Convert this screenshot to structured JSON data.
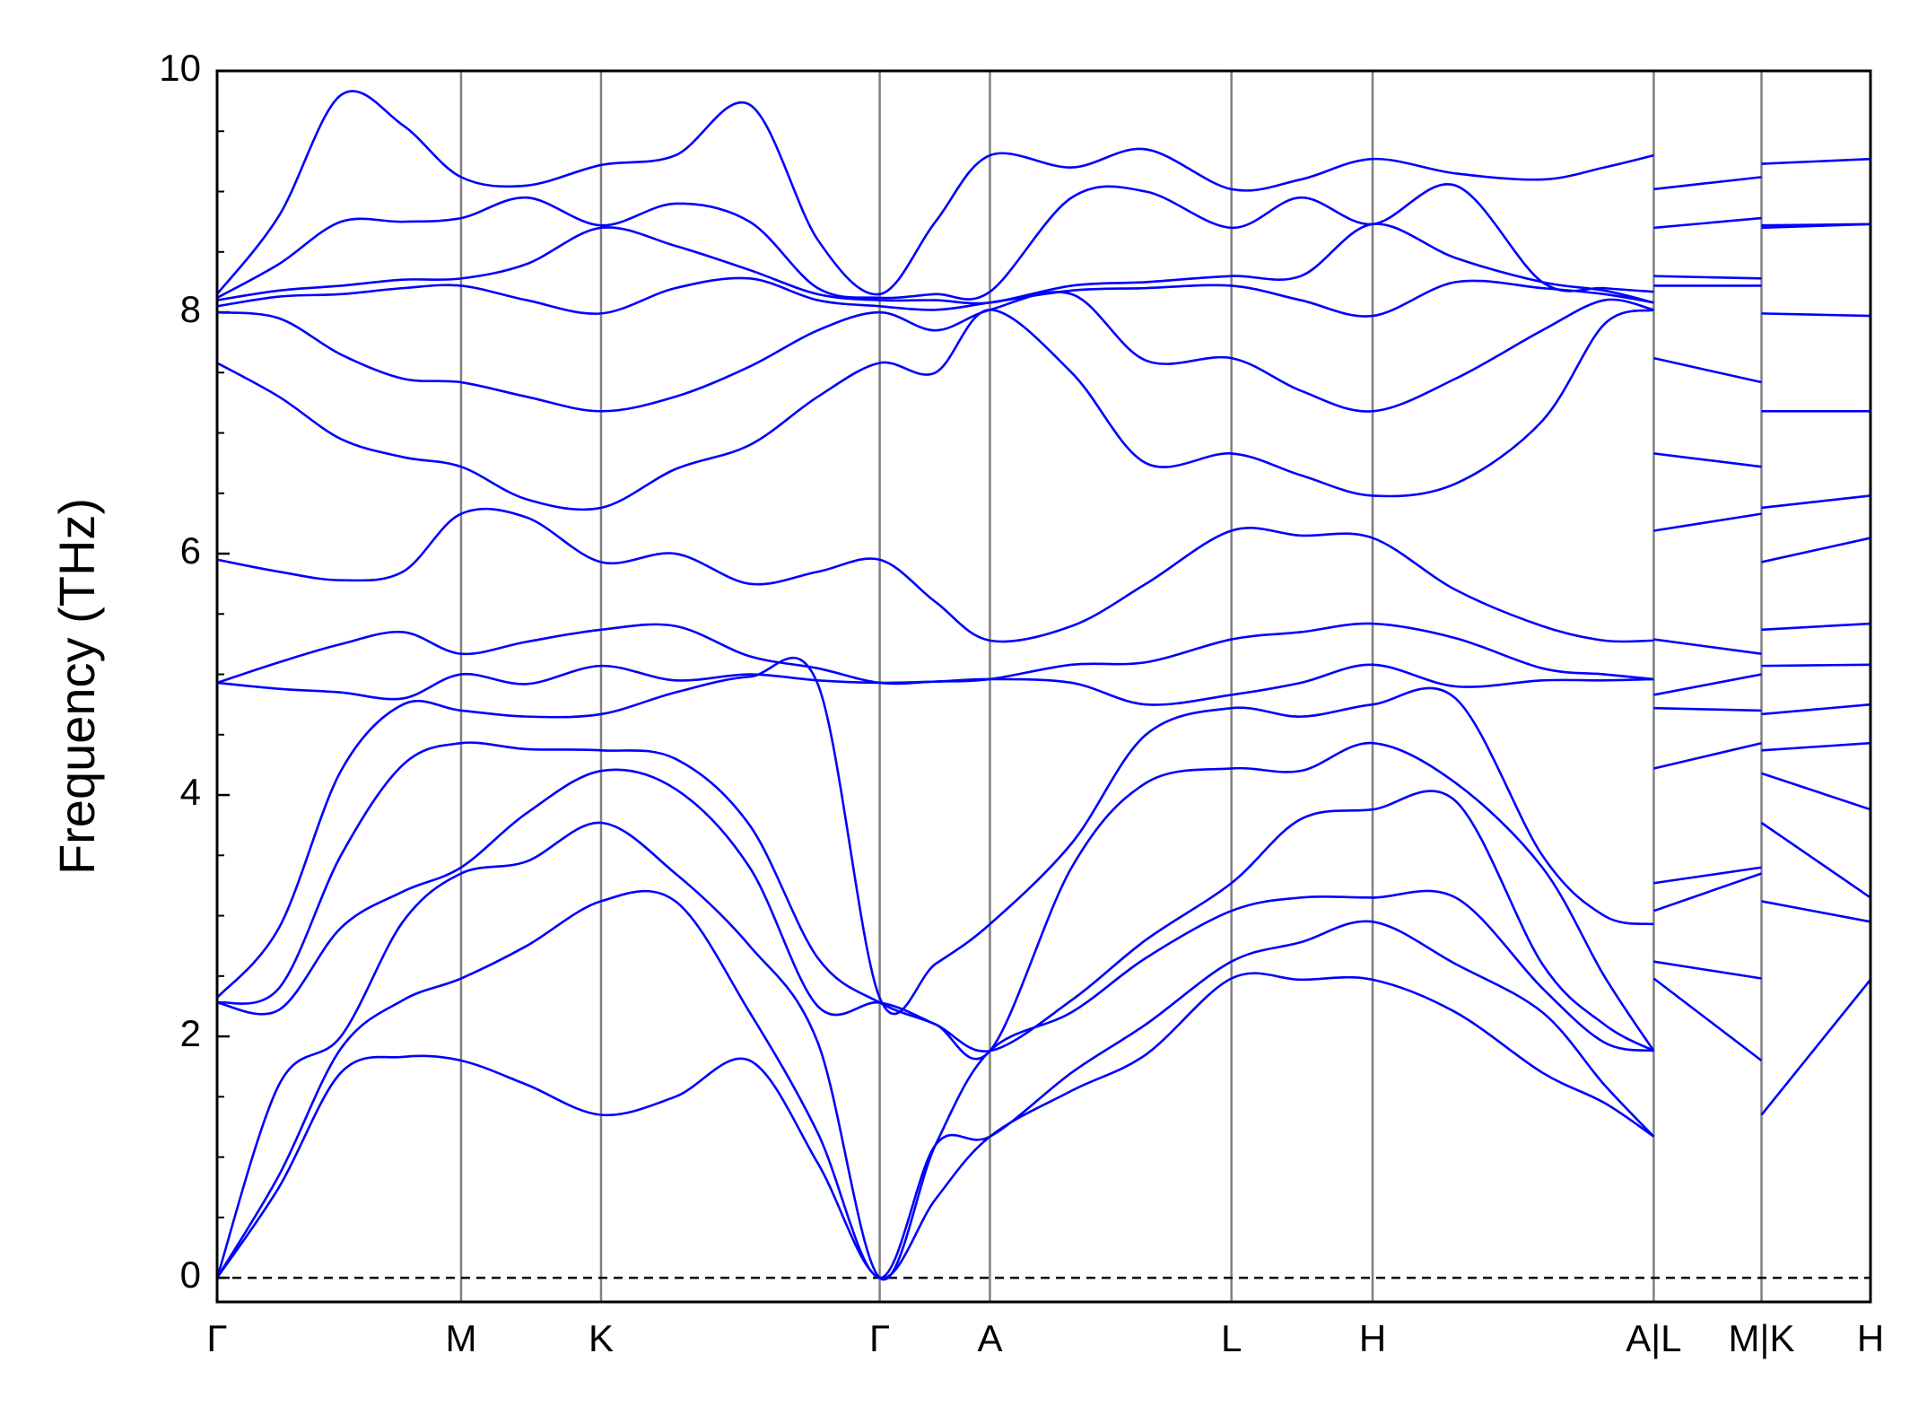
{
  "chart_data": {
    "type": "line",
    "ylabel": "Frequency (THz)",
    "color": "#0000ff",
    "vline_color": "#808080",
    "zero_line": true,
    "xlim": [
      0,
      13.35
    ],
    "ylim": [
      -0.2,
      10
    ],
    "yticks": [
      0,
      2,
      4,
      6,
      8,
      10
    ],
    "yminorticks": [
      0.5,
      1,
      1.5,
      2.5,
      3,
      3.5,
      4.5,
      5,
      5.5,
      6.5,
      7,
      7.5,
      8.5,
      9,
      9.5
    ],
    "xticks": [
      {
        "value": 0,
        "label": "Γ"
      },
      {
        "value": 1.97,
        "label": "M"
      },
      {
        "value": 3.1,
        "label": "K"
      },
      {
        "value": 5.35,
        "label": "Γ"
      },
      {
        "value": 6.24,
        "label": "A"
      },
      {
        "value": 8.19,
        "label": "L"
      },
      {
        "value": 9.33,
        "label": "H"
      },
      {
        "value": 11.6,
        "label": "A|L"
      },
      {
        "value": 12.47,
        "label": "M|K"
      },
      {
        "value": 13.35,
        "label": "H"
      }
    ],
    "x": [
      0,
      0.5,
      1.0,
      1.5,
      1.97,
      2.5,
      3.1,
      3.7,
      4.3,
      4.85,
      5.35,
      5.8,
      6.24,
      6.9,
      7.5,
      8.19,
      8.75,
      9.33,
      10.0,
      10.7,
      11.2,
      11.6,
      11.6,
      11.6,
      12.47,
      12.47,
      12.47,
      13.35
    ],
    "series": [
      {
        "values": [
          0,
          0.75,
          1.7,
          1.83,
          1.8,
          1.6,
          1.35,
          1.5,
          1.8,
          0.95,
          0,
          0.65,
          1.17,
          1.55,
          1.85,
          2.48,
          2.47,
          2.47,
          2.2,
          1.7,
          1.45,
          1.17,
          null,
          2.48,
          1.8,
          null,
          1.35,
          2.47
        ]
      },
      {
        "values": [
          0,
          0.85,
          1.9,
          2.3,
          2.48,
          2.75,
          3.12,
          3.12,
          2.2,
          1.2,
          0,
          1.1,
          1.17,
          1.7,
          2.1,
          2.62,
          2.78,
          2.95,
          2.6,
          2.2,
          1.6,
          1.17,
          null,
          2.62,
          2.48,
          null,
          3.12,
          2.95
        ]
      },
      {
        "values": [
          0,
          1.6,
          2.0,
          2.95,
          3.35,
          3.45,
          3.77,
          3.35,
          2.75,
          1.95,
          0,
          1.1,
          1.88,
          2.2,
          2.65,
          3.04,
          3.15,
          3.15,
          3.15,
          2.4,
          1.95,
          1.88,
          null,
          3.04,
          3.35,
          null,
          3.77,
          3.15
        ]
      },
      {
        "values": [
          2.28,
          2.22,
          2.9,
          3.2,
          3.4,
          3.85,
          4.2,
          4.05,
          3.4,
          2.25,
          2.28,
          2.1,
          1.88,
          2.3,
          2.8,
          3.27,
          3.8,
          3.88,
          3.95,
          2.6,
          2.1,
          1.88,
          null,
          3.27,
          3.4,
          null,
          4.18,
          3.88
        ]
      },
      {
        "values": [
          2.28,
          2.4,
          3.5,
          4.25,
          4.43,
          4.38,
          4.37,
          4.3,
          3.75,
          2.65,
          2.28,
          2.1,
          1.88,
          3.4,
          4.1,
          4.22,
          4.2,
          4.43,
          4.1,
          3.4,
          2.5,
          1.88,
          null,
          4.22,
          4.43,
          null,
          4.37,
          4.43
        ]
      },
      {
        "values": [
          2.32,
          2.9,
          4.2,
          4.75,
          4.7,
          4.65,
          4.67,
          4.85,
          4.98,
          4.92,
          2.32,
          2.6,
          2.93,
          3.6,
          4.5,
          4.72,
          4.65,
          4.75,
          4.8,
          3.5,
          3.0,
          2.93,
          null,
          4.72,
          4.7,
          null,
          4.67,
          4.75
        ]
      },
      {
        "values": [
          4.93,
          4.88,
          4.85,
          4.8,
          5.0,
          4.92,
          5.07,
          4.95,
          5.0,
          4.95,
          4.93,
          4.94,
          4.96,
          4.93,
          4.75,
          4.83,
          4.93,
          5.08,
          4.9,
          4.95,
          4.95,
          4.96,
          null,
          4.83,
          5.0,
          null,
          5.07,
          5.08
        ]
      },
      {
        "values": [
          4.93,
          5.1,
          5.25,
          5.35,
          5.17,
          5.27,
          5.37,
          5.4,
          5.15,
          5.05,
          4.93,
          4.94,
          4.96,
          5.08,
          5.1,
          5.29,
          5.35,
          5.42,
          5.3,
          5.05,
          5.0,
          4.96,
          null,
          5.29,
          5.17,
          null,
          5.37,
          5.42
        ]
      },
      {
        "values": [
          5.95,
          5.85,
          5.78,
          5.85,
          6.33,
          6.3,
          5.93,
          6.0,
          5.75,
          5.85,
          5.95,
          5.6,
          5.28,
          5.4,
          5.75,
          6.19,
          6.15,
          6.13,
          5.7,
          5.4,
          5.28,
          5.28,
          null,
          6.19,
          6.33,
          null,
          5.93,
          6.13
        ]
      },
      {
        "values": [
          7.58,
          7.3,
          6.95,
          6.8,
          6.72,
          6.45,
          6.38,
          6.7,
          6.9,
          7.3,
          7.58,
          7.5,
          8.02,
          7.5,
          6.75,
          6.83,
          6.65,
          6.48,
          6.58,
          7.1,
          7.9,
          8.02,
          null,
          6.83,
          6.72,
          null,
          6.38,
          6.48
        ]
      },
      {
        "values": [
          8.0,
          7.95,
          7.65,
          7.45,
          7.42,
          7.3,
          7.18,
          7.3,
          7.55,
          7.85,
          8.0,
          7.85,
          8.02,
          8.15,
          7.6,
          7.62,
          7.35,
          7.18,
          7.45,
          7.85,
          8.1,
          8.02,
          null,
          7.62,
          7.42,
          null,
          7.18,
          7.18
        ]
      },
      {
        "values": [
          8.05,
          8.13,
          8.15,
          8.2,
          8.22,
          8.1,
          7.99,
          8.2,
          8.28,
          8.1,
          8.05,
          8.02,
          8.08,
          8.18,
          8.2,
          8.22,
          8.1,
          7.97,
          8.25,
          8.2,
          8.15,
          8.08,
          null,
          8.22,
          8.22,
          null,
          7.99,
          7.97
        ]
      },
      {
        "values": [
          8.1,
          8.18,
          8.22,
          8.27,
          8.28,
          8.4,
          8.7,
          8.55,
          8.35,
          8.15,
          8.1,
          8.1,
          8.08,
          8.22,
          8.25,
          8.3,
          8.3,
          8.73,
          8.45,
          8.25,
          8.18,
          8.08,
          null,
          8.3,
          8.28,
          null,
          8.7,
          8.73
        ]
      },
      {
        "values": [
          8.12,
          8.4,
          8.75,
          8.75,
          8.78,
          8.95,
          8.72,
          8.9,
          8.75,
          8.2,
          8.12,
          8.15,
          8.17,
          8.95,
          9.0,
          8.7,
          8.95,
          8.73,
          9.05,
          8.25,
          8.2,
          8.17,
          null,
          8.7,
          8.78,
          null,
          8.72,
          8.73
        ]
      },
      {
        "values": [
          8.15,
          8.8,
          9.8,
          9.55,
          9.12,
          9.05,
          9.22,
          9.3,
          9.72,
          8.6,
          8.15,
          8.75,
          9.3,
          9.2,
          9.35,
          9.02,
          9.1,
          9.27,
          9.15,
          9.1,
          9.2,
          9.3,
          null,
          9.02,
          9.12,
          null,
          9.23,
          9.27
        ]
      }
    ]
  }
}
